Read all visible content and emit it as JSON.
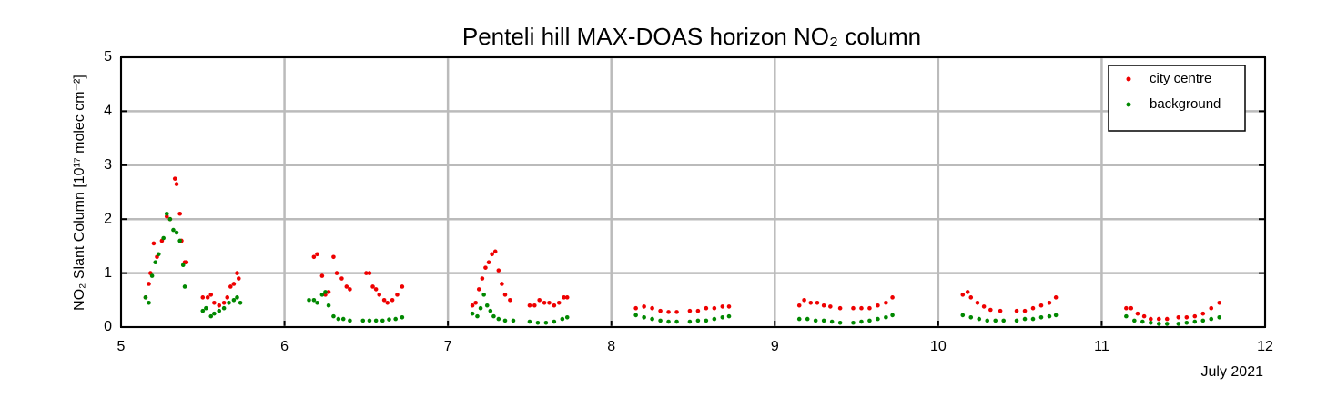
{
  "chart_data": {
    "type": "scatter",
    "title": "Penteli hill MAX-DOAS horizon NO₂ column",
    "y_label": "NO₂ Slant Column [10¹⁷ molec cm⁻²]",
    "x_label": "July 2021",
    "xlim": [
      5,
      12
    ],
    "xticks": [
      5,
      6,
      7,
      8,
      9,
      10,
      11,
      12
    ],
    "ylim": [
      0,
      5
    ],
    "yticks": [
      0,
      1,
      2,
      3,
      4,
      5
    ],
    "grid": true,
    "legend": "upper right",
    "series": [
      {
        "name": "city centre",
        "color": "#ee0000",
        "x": [
          5.15,
          5.17,
          5.18,
          5.2,
          5.22,
          5.25,
          5.28,
          5.3,
          5.33,
          5.34,
          5.36,
          5.37,
          5.39,
          5.4,
          5.5,
          5.53,
          5.55,
          5.57,
          5.6,
          5.63,
          5.65,
          5.67,
          5.69,
          5.71,
          5.72,
          6.18,
          6.2,
          6.23,
          6.25,
          6.27,
          6.3,
          6.32,
          6.35,
          6.38,
          6.4,
          6.5,
          6.52,
          6.54,
          6.56,
          6.58,
          6.61,
          6.63,
          6.66,
          6.69,
          6.72,
          7.15,
          7.17,
          7.19,
          7.21,
          7.23,
          7.25,
          7.27,
          7.29,
          7.31,
          7.33,
          7.35,
          7.38,
          7.5,
          7.53,
          7.56,
          7.59,
          7.62,
          7.65,
          7.68,
          7.71,
          7.73,
          8.15,
          8.2,
          8.25,
          8.3,
          8.35,
          8.4,
          8.48,
          8.53,
          8.58,
          8.63,
          8.68,
          8.72,
          9.15,
          9.18,
          9.22,
          9.26,
          9.3,
          9.34,
          9.4,
          9.48,
          9.53,
          9.58,
          9.63,
          9.68,
          9.72,
          10.15,
          10.18,
          10.2,
          10.24,
          10.28,
          10.32,
          10.38,
          10.48,
          10.53,
          10.58,
          10.63,
          10.68,
          10.72,
          11.15,
          11.18,
          11.22,
          11.26,
          11.3,
          11.35,
          11.4,
          11.47,
          11.52,
          11.57,
          11.62,
          11.67,
          11.72
        ],
        "values": [
          0.55,
          0.8,
          1.0,
          1.55,
          1.3,
          1.6,
          2.05,
          2.0,
          2.75,
          2.65,
          2.1,
          1.6,
          1.2,
          1.2,
          0.55,
          0.55,
          0.6,
          0.45,
          0.4,
          0.45,
          0.55,
          0.75,
          0.8,
          1.0,
          0.9,
          1.3,
          1.35,
          0.95,
          0.6,
          0.65,
          1.3,
          1.0,
          0.9,
          0.75,
          0.7,
          1.0,
          1.0,
          0.75,
          0.7,
          0.6,
          0.5,
          0.45,
          0.5,
          0.6,
          0.75,
          0.4,
          0.45,
          0.7,
          0.9,
          1.1,
          1.2,
          1.35,
          1.4,
          1.05,
          0.8,
          0.6,
          0.5,
          0.4,
          0.4,
          0.5,
          0.45,
          0.45,
          0.4,
          0.45,
          0.55,
          0.55,
          0.35,
          0.38,
          0.35,
          0.3,
          0.28,
          0.28,
          0.3,
          0.3,
          0.35,
          0.35,
          0.38,
          0.38,
          0.4,
          0.5,
          0.45,
          0.45,
          0.4,
          0.38,
          0.35,
          0.35,
          0.35,
          0.35,
          0.4,
          0.45,
          0.55,
          0.6,
          0.65,
          0.55,
          0.45,
          0.38,
          0.32,
          0.3,
          0.3,
          0.3,
          0.35,
          0.4,
          0.45,
          0.55,
          0.35,
          0.35,
          0.25,
          0.2,
          0.15,
          0.15,
          0.15,
          0.18,
          0.18,
          0.2,
          0.25,
          0.35,
          0.45
        ]
      },
      {
        "name": "background",
        "color": "#008800",
        "x": [
          5.15,
          5.17,
          5.19,
          5.21,
          5.23,
          5.26,
          5.28,
          5.3,
          5.32,
          5.34,
          5.36,
          5.38,
          5.39,
          5.5,
          5.52,
          5.55,
          5.57,
          5.6,
          5.63,
          5.66,
          5.69,
          5.71,
          5.73,
          6.15,
          6.18,
          6.2,
          6.23,
          6.25,
          6.27,
          6.3,
          6.33,
          6.36,
          6.4,
          6.48,
          6.52,
          6.56,
          6.6,
          6.64,
          6.68,
          6.72,
          7.15,
          7.18,
          7.2,
          7.22,
          7.24,
          7.26,
          7.28,
          7.31,
          7.35,
          7.4,
          7.5,
          7.55,
          7.6,
          7.65,
          7.7,
          7.73,
          8.15,
          8.2,
          8.25,
          8.3,
          8.35,
          8.4,
          8.48,
          8.53,
          8.58,
          8.63,
          8.68,
          8.72,
          9.15,
          9.2,
          9.25,
          9.3,
          9.35,
          9.4,
          9.48,
          9.53,
          9.58,
          9.63,
          9.68,
          9.72,
          10.15,
          10.2,
          10.25,
          10.3,
          10.35,
          10.4,
          10.48,
          10.53,
          10.58,
          10.63,
          10.68,
          10.72,
          11.15,
          11.2,
          11.25,
          11.3,
          11.35,
          11.4,
          11.47,
          11.52,
          11.57,
          11.62,
          11.67,
          11.72
        ],
        "values": [
          0.55,
          0.45,
          0.95,
          1.2,
          1.35,
          1.65,
          2.1,
          2.0,
          1.8,
          1.75,
          1.6,
          1.15,
          0.75,
          0.3,
          0.35,
          0.2,
          0.25,
          0.3,
          0.35,
          0.45,
          0.5,
          0.55,
          0.45,
          0.5,
          0.5,
          0.45,
          0.6,
          0.65,
          0.4,
          0.2,
          0.15,
          0.15,
          0.12,
          0.12,
          0.12,
          0.12,
          0.12,
          0.14,
          0.15,
          0.18,
          0.25,
          0.2,
          0.35,
          0.6,
          0.4,
          0.3,
          0.2,
          0.15,
          0.12,
          0.12,
          0.1,
          0.08,
          0.08,
          0.1,
          0.15,
          0.18,
          0.22,
          0.18,
          0.15,
          0.12,
          0.1,
          0.1,
          0.1,
          0.12,
          0.12,
          0.15,
          0.18,
          0.2,
          0.15,
          0.15,
          0.12,
          0.12,
          0.1,
          0.08,
          0.08,
          0.1,
          0.12,
          0.15,
          0.18,
          0.22,
          0.22,
          0.18,
          0.15,
          0.12,
          0.12,
          0.12,
          0.12,
          0.15,
          0.15,
          0.18,
          0.2,
          0.22,
          0.2,
          0.12,
          0.1,
          0.08,
          0.06,
          0.06,
          0.06,
          0.08,
          0.1,
          0.12,
          0.15,
          0.18
        ]
      }
    ]
  }
}
